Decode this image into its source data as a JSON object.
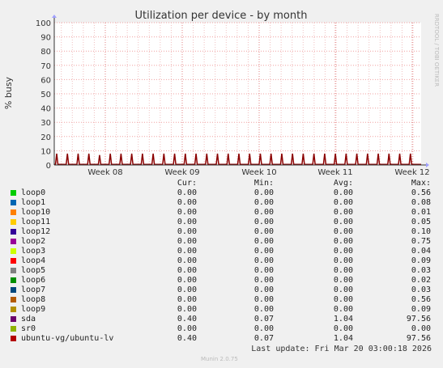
{
  "chart_data": {
    "type": "line",
    "title": "Utilization per device - by month",
    "ylabel": "% busy",
    "xlabel": "",
    "ylim": [
      0,
      100
    ],
    "yticks": [
      0,
      10,
      20,
      30,
      40,
      50,
      60,
      70,
      80,
      90,
      100
    ],
    "xticks": [
      "Week 08",
      "Week 09",
      "Week 10",
      "Week 11",
      "Week 12"
    ],
    "grid": true,
    "series": [
      {
        "name": "sda",
        "color": "#8b0000",
        "peak_values": [
          8,
          8,
          8,
          8,
          7,
          8,
          8,
          8,
          8,
          8,
          8,
          8,
          8,
          8,
          8,
          8,
          8,
          8,
          8,
          8,
          8,
          8,
          8,
          8,
          8,
          8,
          8,
          8,
          8,
          8,
          8,
          8,
          8,
          8
        ],
        "baseline": 0.4
      }
    ]
  },
  "watermark": "RRDTOOL / TOBI OETIKER",
  "legend": {
    "headers": {
      "cur": "Cur:",
      "min": "Min:",
      "avg": "Avg:",
      "max": "Max:"
    },
    "rows": [
      {
        "name": "loop0",
        "color": "#00cc00",
        "cur": "0.00",
        "min": "0.00",
        "avg": "0.00",
        "max": "0.56"
      },
      {
        "name": "loop1",
        "color": "#0066b3",
        "cur": "0.00",
        "min": "0.00",
        "avg": "0.00",
        "max": "0.08"
      },
      {
        "name": "loop10",
        "color": "#ff8000",
        "cur": "0.00",
        "min": "0.00",
        "avg": "0.00",
        "max": "0.01"
      },
      {
        "name": "loop11",
        "color": "#ffcc00",
        "cur": "0.00",
        "min": "0.00",
        "avg": "0.00",
        "max": "0.05"
      },
      {
        "name": "loop12",
        "color": "#330099",
        "cur": "0.00",
        "min": "0.00",
        "avg": "0.00",
        "max": "0.10"
      },
      {
        "name": "loop2",
        "color": "#990099",
        "cur": "0.00",
        "min": "0.00",
        "avg": "0.00",
        "max": "0.75"
      },
      {
        "name": "loop3",
        "color": "#ccff00",
        "cur": "0.00",
        "min": "0.00",
        "avg": "0.00",
        "max": "0.04"
      },
      {
        "name": "loop4",
        "color": "#ff0000",
        "cur": "0.00",
        "min": "0.00",
        "avg": "0.00",
        "max": "0.09"
      },
      {
        "name": "loop5",
        "color": "#808080",
        "cur": "0.00",
        "min": "0.00",
        "avg": "0.00",
        "max": "0.03"
      },
      {
        "name": "loop6",
        "color": "#008f00",
        "cur": "0.00",
        "min": "0.00",
        "avg": "0.00",
        "max": "0.02"
      },
      {
        "name": "loop7",
        "color": "#00487d",
        "cur": "0.00",
        "min": "0.00",
        "avg": "0.00",
        "max": "0.03"
      },
      {
        "name": "loop8",
        "color": "#b35a00",
        "cur": "0.00",
        "min": "0.00",
        "avg": "0.00",
        "max": "0.56"
      },
      {
        "name": "loop9",
        "color": "#b38f00",
        "cur": "0.00",
        "min": "0.00",
        "avg": "0.00",
        "max": "0.09"
      },
      {
        "name": "sda",
        "color": "#6b006b",
        "cur": "0.40",
        "min": "0.07",
        "avg": "1.04",
        "max": "97.56"
      },
      {
        "name": "sr0",
        "color": "#8fb300",
        "cur": "0.00",
        "min": "0.00",
        "avg": "0.00",
        "max": "0.00"
      },
      {
        "name": "ubuntu-vg/ubuntu-lv",
        "color": "#b30000",
        "cur": "0.40",
        "min": "0.07",
        "avg": "1.04",
        "max": "97.56"
      }
    ]
  },
  "last_update": "Last update: Fri Mar 20 03:00:18 2026",
  "munin_version": "Munin 2.0.75"
}
